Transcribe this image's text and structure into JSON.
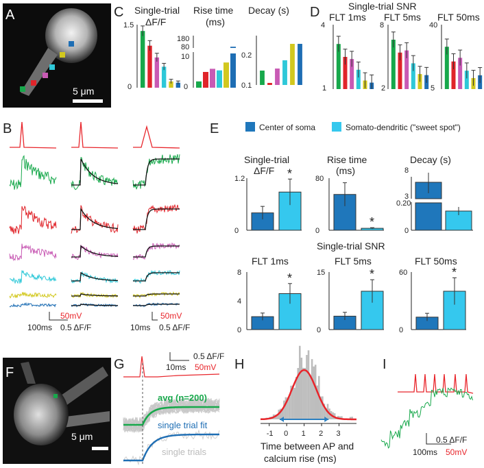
{
  "colors": {
    "red": "#e8242a",
    "green": "#17a84b",
    "crimson": "#e0242a",
    "magenta": "#c85ab4",
    "cyan": "#2ec8d8",
    "yellow": "#d2c81e",
    "blue": "#1e6eb4",
    "soma": "#1f77bb",
    "sweet": "#35c8ee",
    "gray": "#bdbdbd"
  },
  "panels": {
    "A": {
      "label": "A",
      "scale": "5 μm"
    },
    "B": {
      "label": "B",
      "scale_time_left": "100ms",
      "scale_time_mid": "10ms",
      "scale_v": "50mV",
      "scale_f": "0.5 ΔF/F"
    },
    "C": {
      "label": "C",
      "t1": "Single-trial",
      "t1b": "ΔF/F",
      "t2": "Rise time",
      "t2b": "(ms)",
      "t3": "Decay (s)"
    },
    "D": {
      "label": "D",
      "title": "Single-trial SNR",
      "f1": "FLT 1ms",
      "f2": "FLT 5ms",
      "f3": "FLT 50ms"
    },
    "E": {
      "label": "E",
      "leg1": "Center of soma",
      "leg2": "Somato-dendritic (\"sweet spot\")",
      "t1": "Single-trial",
      "t1b": "ΔF/F",
      "t2": "Rise time",
      "t2b": "(ms)",
      "t3": "Decay (s)",
      "snr": "Single-trial SNR",
      "f1": "FLT 1ms",
      "f2": "FLT 5ms",
      "f3": "FLT 50ms",
      "star": "*"
    },
    "F": {
      "label": "F",
      "scale": "5 μm"
    },
    "G": {
      "label": "G",
      "scale_f": "0.5 ΔF/F",
      "scale_t": "10ms",
      "scale_v": "50mV",
      "avg": "avg (n=200)",
      "fit": "single trial fit",
      "trials": "single trials"
    },
    "H": {
      "label": "H",
      "xlabel1": "Time between AP and",
      "xlabel2": "calcium rise (ms)"
    },
    "I": {
      "label": "I",
      "scale_f": "0.5 ΔF/F",
      "scale_t": "100ms",
      "scale_v": "50mV"
    }
  },
  "chart_data": [
    {
      "type": "bar",
      "id": "C-dff",
      "title": "Single-trial ΔF/F",
      "categories": [
        "green",
        "red",
        "magenta",
        "cyan",
        "yellow",
        "blue"
      ],
      "values": [
        1.35,
        1.0,
        0.72,
        0.5,
        0.15,
        0.12
      ],
      "errors": [
        0.12,
        0.12,
        0.1,
        0.08,
        0.05,
        0.04
      ],
      "ylim": [
        0,
        1.5
      ],
      "yticks": [
        "0",
        "1.5"
      ]
    },
    {
      "type": "bar",
      "id": "C-rise",
      "title": "Rise time (ms)",
      "categories": [
        "green",
        "red",
        "magenta",
        "cyan",
        "yellow",
        "blue"
      ],
      "values": [
        2,
        5,
        6,
        5.5,
        8,
        90
      ],
      "ylim": [
        0,
        180
      ],
      "yticks": [
        "0",
        "10",
        "80",
        "180"
      ]
    },
    {
      "type": "bar",
      "id": "C-decay",
      "title": "Decay (s)",
      "categories": [
        "green",
        "red",
        "magenta",
        "cyan",
        "yellow",
        "blue"
      ],
      "values": [
        0.135,
        0.105,
        0.14,
        0.16,
        0.2,
        0.2
      ],
      "ylim": [
        0.1,
        0.22
      ],
      "yticks": [
        "0.1",
        "0.2"
      ]
    },
    {
      "type": "bar",
      "id": "D-1ms",
      "title": "FLT 1ms",
      "categories": [
        "green",
        "red",
        "magenta",
        "cyan",
        "yellow",
        "blue"
      ],
      "values": [
        3.1,
        2.5,
        2.4,
        1.9,
        1.4,
        1.3
      ],
      "ylim": [
        1,
        4
      ],
      "yticks": [
        "1",
        "4"
      ]
    },
    {
      "type": "bar",
      "id": "D-5ms",
      "title": "FLT 5ms",
      "categories": [
        "green",
        "red",
        "magenta",
        "cyan",
        "yellow",
        "blue"
      ],
      "values": [
        6.6,
        5.4,
        5.6,
        4.4,
        3.4,
        3.3
      ],
      "ylim": [
        2,
        8
      ],
      "yticks": [
        "2",
        "8"
      ]
    },
    {
      "type": "bar",
      "id": "D-50ms",
      "title": "FLT 50ms",
      "categories": [
        "green",
        "red",
        "magenta",
        "cyan",
        "yellow",
        "blue"
      ],
      "values": [
        28,
        20,
        22,
        15,
        11,
        12.5
      ],
      "ylim": [
        5,
        40
      ],
      "yticks": [
        "5",
        "40"
      ]
    },
    {
      "type": "bar",
      "id": "E-dff",
      "title": "Single-trial ΔF/F",
      "categories": [
        "Center of soma",
        "Somato-dendritic (\"sweet spot\")"
      ],
      "values": [
        0.4,
        0.88
      ],
      "errors": [
        0.15,
        0.3
      ],
      "ylim": [
        0,
        1.2
      ],
      "yticks": [
        "0",
        "1.2"
      ]
    },
    {
      "type": "bar",
      "id": "E-rise",
      "title": "Rise time (ms)",
      "categories": [
        "Center of soma",
        "Somato-dendritic (\"sweet spot\")"
      ],
      "values": [
        55,
        3
      ],
      "errors": [
        18,
        1
      ],
      "ylim": [
        0,
        80
      ],
      "yticks": [
        "0",
        "80"
      ]
    },
    {
      "type": "bar",
      "id": "E-decay",
      "title": "Decay (s)",
      "categories": [
        "Center of soma",
        "Somato-dendritic (\"sweet spot\")"
      ],
      "values": [
        5.5,
        0.15
      ],
      "ylim": [
        0,
        8
      ],
      "yticks": [
        "0",
        "0.20",
        "3",
        "8"
      ]
    },
    {
      "type": "bar",
      "id": "E-1ms",
      "title": "FLT 1ms",
      "categories": [
        "Center of soma",
        "Somato-dendritic (\"sweet spot\")"
      ],
      "values": [
        1.8,
        5.0
      ],
      "errors": [
        0.5,
        1.4
      ],
      "ylim": [
        0,
        8
      ],
      "yticks": [
        "0",
        "4",
        "8"
      ]
    },
    {
      "type": "bar",
      "id": "E-5ms",
      "title": "FLT 5ms",
      "categories": [
        "Center of soma",
        "Somato-dendritic (\"sweet spot\")"
      ],
      "values": [
        3.5,
        10
      ],
      "errors": [
        1,
        3
      ],
      "ylim": [
        0,
        15
      ],
      "yticks": [
        "0",
        "15"
      ]
    },
    {
      "type": "bar",
      "id": "E-50ms",
      "title": "FLT 50ms",
      "categories": [
        "Center of soma",
        "Somato-dendritic (\"sweet spot\")"
      ],
      "values": [
        13,
        40
      ],
      "errors": [
        4,
        14
      ],
      "ylim": [
        0,
        60
      ],
      "yticks": [
        "0",
        "60"
      ]
    },
    {
      "type": "bar",
      "id": "H-hist",
      "title": "",
      "xlabel": "Time between AP and calcium rise (ms)",
      "xlim": [
        -1.5,
        4
      ],
      "xticks": [
        "-1",
        "0",
        "1",
        "2",
        "3"
      ],
      "gaussian_mean": 1.0,
      "gaussian_sd": 0.7
    }
  ]
}
